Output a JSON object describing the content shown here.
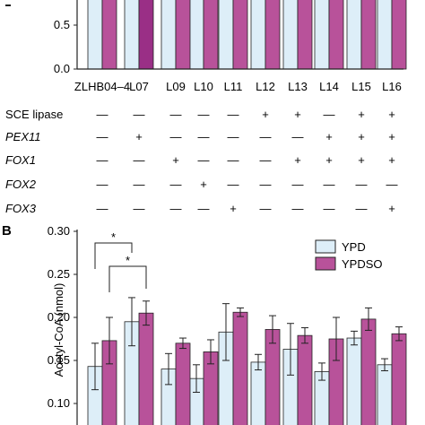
{
  "panel_b_label": "B",
  "genotype_rows": [
    {
      "label": "SCE lipase",
      "italic": false,
      "marks": [
        "—",
        "—",
        "—",
        "—",
        "—",
        "+",
        "+",
        "—",
        "+",
        "+"
      ]
    },
    {
      "label": "PEX11",
      "italic": true,
      "marks": [
        "—",
        "+",
        "—",
        "—",
        "—",
        "—",
        "—",
        "+",
        "+",
        "+"
      ]
    },
    {
      "label": "FOX1",
      "italic": true,
      "marks": [
        "—",
        "—",
        "+",
        "—",
        "—",
        "—",
        "+",
        "+",
        "+",
        "+"
      ]
    },
    {
      "label": "FOX2",
      "italic": true,
      "marks": [
        "—",
        "—",
        "—",
        "+",
        "—",
        "—",
        "—",
        "—",
        "—",
        "—"
      ]
    },
    {
      "label": "FOX3",
      "italic": true,
      "marks": [
        "—",
        "—",
        "—",
        "—",
        "+",
        "—",
        "—",
        "—",
        "—",
        "+"
      ]
    }
  ],
  "colors": {
    "ypd": "#ddeef8",
    "ypdso": "#b8529a",
    "ypdso_dark": "#9a2f86",
    "stroke": "#222222"
  },
  "chart_data": [
    {
      "type": "bar",
      "panel": "A",
      "categories": [
        "ZLHB04–4",
        "L07",
        "L09",
        "L10",
        "L11",
        "L12",
        "L13",
        "L14",
        "L15",
        "L16"
      ],
      "series": [
        {
          "name": "YPD",
          "values": [
            1,
            1,
            1,
            1,
            1,
            1,
            1,
            1,
            1,
            1
          ]
        },
        {
          "name": "YPDSO",
          "values": [
            1,
            1,
            1,
            1,
            1,
            1,
            1,
            1,
            1,
            1
          ]
        }
      ],
      "y_ticks": [
        "0.5",
        "0.0"
      ],
      "xlabel": "",
      "ylabel": "",
      "grid": false
    },
    {
      "type": "bar",
      "panel": "B",
      "categories": [
        "ZLHB04–4",
        "L07",
        "L09",
        "L10",
        "L11",
        "L12",
        "L13",
        "L14",
        "L15",
        "L16"
      ],
      "series": [
        {
          "name": "YPD",
          "values": [
            0.143,
            0.195,
            0.14,
            0.129,
            0.183,
            0.148,
            0.163,
            0.137,
            0.176,
            0.145
          ],
          "errors": [
            0.027,
            0.028,
            0.018,
            0.016,
            0.033,
            0.009,
            0.03,
            0.01,
            0.008,
            0.007
          ]
        },
        {
          "name": "YPDSO",
          "values": [
            0.173,
            0.205,
            0.17,
            0.16,
            0.206,
            0.186,
            0.179,
            0.175,
            0.198,
            0.181
          ],
          "errors": [
            0.027,
            0.014,
            0.006,
            0.014,
            0.005,
            0.016,
            0.009,
            0.025,
            0.013,
            0.008
          ]
        }
      ],
      "y_ticks": [
        "0.30",
        "0.25",
        "0.20",
        "0.15",
        "0.10"
      ],
      "ylim": [
        0.09,
        0.3
      ],
      "ylabel": "Acetyl-CoA (nmol)",
      "legend": {
        "position": "top-right",
        "entries": [
          "YPD",
          "YPDSO"
        ]
      },
      "annotations": [
        {
          "text": "*",
          "from_category": 0,
          "to_category": 1,
          "level": "upper"
        },
        {
          "text": "*",
          "from_category": 0,
          "to_category": 1,
          "level": "lower"
        }
      ],
      "grid": false
    }
  ]
}
